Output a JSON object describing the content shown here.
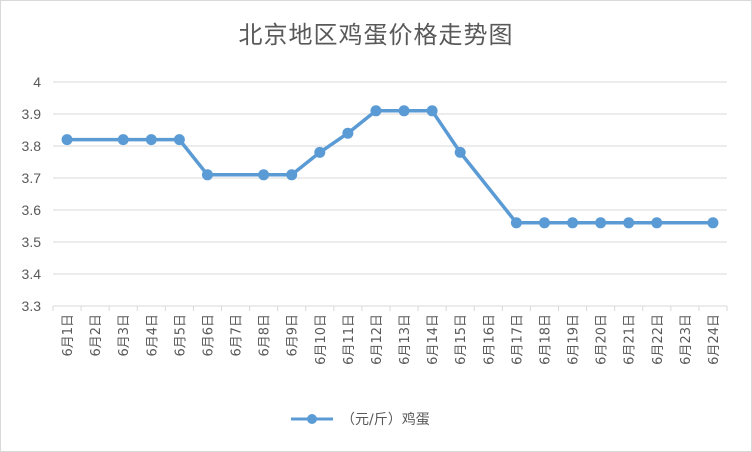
{
  "chart_data": {
    "type": "line",
    "title": "北京地区鸡蛋价格走势图",
    "xlabel": "",
    "ylabel": "",
    "ylim": [
      3.3,
      4.0
    ],
    "yticks": [
      "3.3",
      "3.4",
      "3.5",
      "3.6",
      "3.7",
      "3.8",
      "3.9",
      "4"
    ],
    "categories": [
      "6月1日",
      "6月2日",
      "6月3日",
      "6月4日",
      "6月5日",
      "6月6日",
      "6月7日",
      "6月8日",
      "6月9日",
      "6月10日",
      "6月11日",
      "6月12日",
      "6月13日",
      "6月14日",
      "6月15日",
      "6月16日",
      "6月17日",
      "6月18日",
      "6月19日",
      "6月20日",
      "6月21日",
      "6月22日",
      "6月23日",
      "6月24日"
    ],
    "series": [
      {
        "name": "（元/斤）鸡蛋",
        "color": "#5b9bd5",
        "values": [
          3.82,
          null,
          3.82,
          3.82,
          3.82,
          3.71,
          null,
          3.71,
          3.71,
          3.78,
          3.84,
          3.91,
          3.91,
          3.91,
          3.78,
          null,
          3.56,
          3.56,
          3.56,
          3.56,
          3.56,
          3.56,
          null,
          3.56
        ]
      }
    ],
    "grid": true,
    "legend_position": "bottom"
  }
}
